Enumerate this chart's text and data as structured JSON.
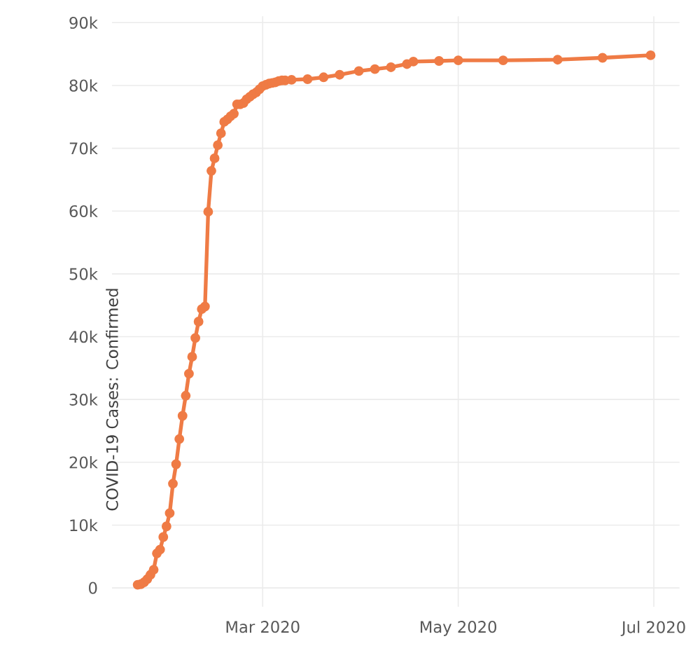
{
  "chart_data": {
    "type": "line",
    "ylabel": "COVID-19 Cases: Confirmed",
    "x": [
      "2020-01-22",
      "2020-01-23",
      "2020-01-24",
      "2020-01-25",
      "2020-01-26",
      "2020-01-27",
      "2020-01-28",
      "2020-01-29",
      "2020-01-30",
      "2020-01-31",
      "2020-02-01",
      "2020-02-02",
      "2020-02-03",
      "2020-02-04",
      "2020-02-05",
      "2020-02-06",
      "2020-02-07",
      "2020-02-08",
      "2020-02-09",
      "2020-02-10",
      "2020-02-11",
      "2020-02-12",
      "2020-02-13",
      "2020-02-14",
      "2020-02-15",
      "2020-02-16",
      "2020-02-17",
      "2020-02-18",
      "2020-02-19",
      "2020-02-20",
      "2020-02-21",
      "2020-02-22",
      "2020-02-23",
      "2020-02-24",
      "2020-02-25",
      "2020-02-26",
      "2020-02-27",
      "2020-02-28",
      "2020-02-29",
      "2020-03-01",
      "2020-03-02",
      "2020-03-03",
      "2020-03-04",
      "2020-03-05",
      "2020-03-06",
      "2020-03-07",
      "2020-03-08",
      "2020-03-10",
      "2020-03-15",
      "2020-03-20",
      "2020-03-25",
      "2020-03-31",
      "2020-04-05",
      "2020-04-10",
      "2020-04-15",
      "2020-04-17",
      "2020-04-25",
      "2020-05-01",
      "2020-05-15",
      "2020-06-01",
      "2020-06-15",
      "2020-06-30"
    ],
    "series": [
      {
        "color": "#ef7b45",
        "values": [
          500,
          600,
          900,
          1400,
          2100,
          2900,
          5500,
          6100,
          8100,
          9800,
          11900,
          16600,
          19700,
          23700,
          27400,
          30600,
          34100,
          36800,
          39800,
          42400,
          44400,
          44800,
          59900,
          66400,
          68400,
          70500,
          72400,
          74200,
          74600,
          75100,
          75500,
          77000,
          77000,
          77200,
          77800,
          78200,
          78600,
          78900,
          79400,
          79900,
          80100,
          80300,
          80400,
          80500,
          80700,
          80800,
          80800,
          80900,
          81000,
          81300,
          81700,
          82300,
          82600,
          82900,
          83400,
          83800,
          83900,
          84000,
          84000,
          84100,
          84400,
          84800
        ]
      }
    ],
    "xlim": [
      "2020-01-14",
      "2020-07-09"
    ],
    "xticks": [
      {
        "value": "2020-03-01",
        "label": "Mar 2020"
      },
      {
        "value": "2020-05-01",
        "label": "May 2020"
      },
      {
        "value": "2020-07-01",
        "label": "Jul 2020"
      }
    ],
    "ylim": [
      -3000,
      91000
    ],
    "yticks": [
      0,
      {
        "value": 10000,
        "label": "10k"
      },
      {
        "value": 20000,
        "label": "20k"
      },
      {
        "value": 30000,
        "label": "30k"
      },
      {
        "value": 40000,
        "label": "40k"
      },
      {
        "value": 50000,
        "label": "50k"
      },
      {
        "value": 60000,
        "label": "60k"
      },
      {
        "value": 70000,
        "label": "70k"
      },
      {
        "value": 80000,
        "label": "80k"
      },
      {
        "value": 90000,
        "label": "90k"
      }
    ],
    "grid": true,
    "marker": "circle",
    "line_style": "solid"
  }
}
